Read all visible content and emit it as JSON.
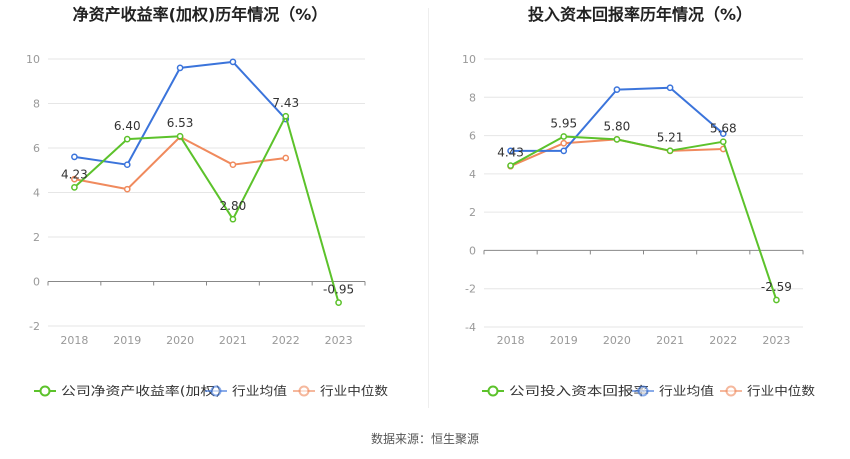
{
  "source": "数据来源：恒生聚源",
  "colors": {
    "company": "#5cc22b",
    "industry_avg": "#3b74db",
    "industry_median": "#f08a5d",
    "grid": "#e6e6e6",
    "axis": "#999999",
    "text": "#333333",
    "label": "#666666"
  },
  "chart_data": [
    {
      "type": "line",
      "title": "净资产收益率(加权)历年情况（%）",
      "categories": [
        "2018",
        "2019",
        "2020",
        "2021",
        "2022",
        "2023"
      ],
      "ylim": [
        -2,
        10
      ],
      "yticks": [
        -2,
        0,
        2,
        4,
        6,
        8,
        10
      ],
      "series": [
        {
          "name": "公司净资产收益率(加权)",
          "key": "company",
          "values": [
            4.23,
            6.4,
            6.53,
            2.8,
            7.43,
            -0.95
          ],
          "labels": [
            "4.23",
            "6.40",
            "6.53",
            "2.80",
            "7.43",
            "-0.95"
          ]
        },
        {
          "name": "行业均值",
          "key": "industry_avg",
          "values": [
            5.6,
            5.25,
            9.6,
            9.87,
            7.3,
            null
          ]
        },
        {
          "name": "行业中位数",
          "key": "industry_median",
          "values": [
            4.6,
            4.15,
            6.5,
            5.25,
            5.55,
            null
          ]
        }
      ]
    },
    {
      "type": "line",
      "title": "投入资本回报率历年情况（%）",
      "categories": [
        "2018",
        "2019",
        "2020",
        "2021",
        "2022",
        "2023"
      ],
      "ylim": [
        -4,
        10
      ],
      "yticks": [
        -4,
        -2,
        0,
        2,
        4,
        6,
        8,
        10
      ],
      "series": [
        {
          "name": "公司投入资本回报率",
          "key": "company",
          "values": [
            4.43,
            5.95,
            5.8,
            5.21,
            5.68,
            -2.59
          ],
          "labels": [
            "4.43",
            "5.95",
            "5.80",
            "5.21",
            "5.68",
            "-2.59"
          ]
        },
        {
          "name": "行业均值",
          "key": "industry_avg",
          "values": [
            5.2,
            5.2,
            8.4,
            8.5,
            6.1,
            null
          ]
        },
        {
          "name": "行业中位数",
          "key": "industry_median",
          "values": [
            4.4,
            5.6,
            5.8,
            5.2,
            5.3,
            null
          ]
        }
      ]
    }
  ]
}
